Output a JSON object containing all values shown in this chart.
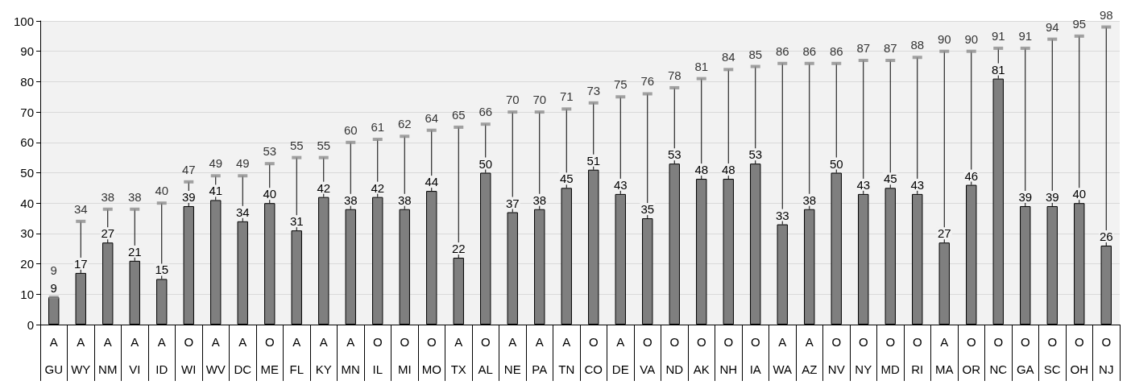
{
  "chart_data": {
    "type": "bar",
    "categories": [
      "A\nGU",
      "A\nWY",
      "A\nNM",
      "A\nVI",
      "A\nID",
      "O\nWI",
      "A\nWV",
      "A\nDC",
      "O\nME",
      "A\nFL",
      "A\nKY",
      "A\nMN",
      "O\nIL",
      "O\nMI",
      "O\nMO",
      "A\nTX",
      "O\nAL",
      "A\nNE",
      "A\nPA",
      "A\nTN",
      "O\nCO",
      "A\nDE",
      "O\nVA",
      "O\nND",
      "O\nAK",
      "O\nNH",
      "O\nIA",
      "A\nWA",
      "A\nAZ",
      "O\nNV",
      "O\nNY",
      "O\nMD",
      "O\nRI",
      "A\nMA",
      "O\nOR",
      "O\nNC",
      "O\nGA",
      "O\nSC",
      "O\nOH",
      "O\nNJ"
    ],
    "series": [
      {
        "color": "#7f7f7f",
        "values": [
          9,
          17,
          27,
          21,
          15,
          39,
          41,
          34,
          40,
          31,
          42,
          38,
          42,
          38,
          44,
          22,
          50,
          37,
          38,
          45,
          51,
          43,
          35,
          53,
          48,
          48,
          53,
          33,
          38,
          50,
          43,
          45,
          43,
          27,
          46,
          81,
          39,
          39,
          40,
          26
        ]
      },
      {
        "type": "scatter",
        "color": "#8c8c8c",
        "values": [
          9,
          34,
          38,
          38,
          40,
          47,
          49,
          49,
          53,
          55,
          55,
          60,
          61,
          62,
          64,
          65,
          66,
          70,
          70,
          71,
          73,
          75,
          76,
          78,
          81,
          84,
          85,
          86,
          86,
          86,
          87,
          87,
          88,
          90,
          90,
          91,
          91,
          94,
          95,
          98
        ],
        "errors": [
          [
            9,
            9
          ],
          [
            17,
            34
          ],
          [
            27,
            38
          ],
          [
            21,
            38
          ],
          [
            15,
            40
          ],
          [
            39,
            47
          ],
          [
            41,
            49
          ],
          [
            34,
            49
          ],
          [
            40,
            53
          ],
          [
            31,
            55
          ],
          [
            42,
            55
          ],
          [
            38,
            60
          ],
          [
            42,
            61
          ],
          [
            38,
            62
          ],
          [
            44,
            64
          ],
          [
            22,
            65
          ],
          [
            50,
            66
          ],
          [
            37,
            70
          ],
          [
            38,
            70
          ],
          [
            45,
            71
          ],
          [
            51,
            73
          ],
          [
            43,
            75
          ],
          [
            35,
            76
          ],
          [
            53,
            78
          ],
          [
            48,
            81
          ],
          [
            48,
            84
          ],
          [
            53,
            85
          ],
          [
            33,
            86
          ],
          [
            38,
            86
          ],
          [
            50,
            86
          ],
          [
            43,
            87
          ],
          [
            45,
            87
          ],
          [
            43,
            88
          ],
          [
            27,
            90
          ],
          [
            46,
            90
          ],
          [
            81,
            91
          ],
          [
            39,
            91
          ],
          [
            39,
            94
          ],
          [
            40,
            95
          ],
          [
            26,
            98
          ]
        ]
      }
    ],
    "ylim": [
      0,
      100
    ],
    "yticks": [
      0,
      10,
      20,
      30,
      40,
      50,
      60,
      70,
      80,
      90,
      100
    ],
    "grid": "y",
    "data_labels": true,
    "marker": "square"
  }
}
